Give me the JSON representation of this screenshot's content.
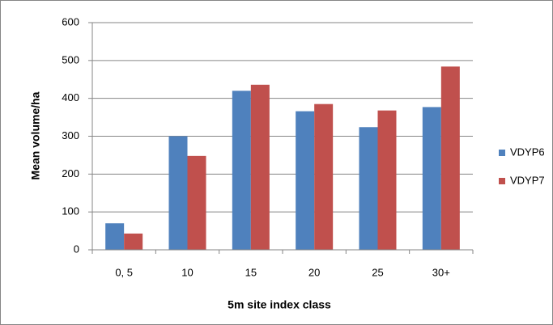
{
  "chart_data": {
    "type": "bar",
    "x_label": "5m site index class",
    "y_label": "Mean volume/ha",
    "categories": [
      "0, 5",
      "10",
      "15",
      "20",
      "25",
      "30+"
    ],
    "series": [
      {
        "name": "VDYP6",
        "color": "#4f81bd",
        "values": [
          70,
          300,
          420,
          366,
          324,
          377
        ]
      },
      {
        "name": "VDYP7",
        "color": "#c0504d",
        "values": [
          43,
          248,
          436,
          385,
          368,
          484
        ]
      }
    ],
    "ylim": [
      0,
      600
    ],
    "yticks": [
      0,
      100,
      200,
      300,
      400,
      500,
      600
    ],
    "grid": true,
    "legend": "right"
  }
}
